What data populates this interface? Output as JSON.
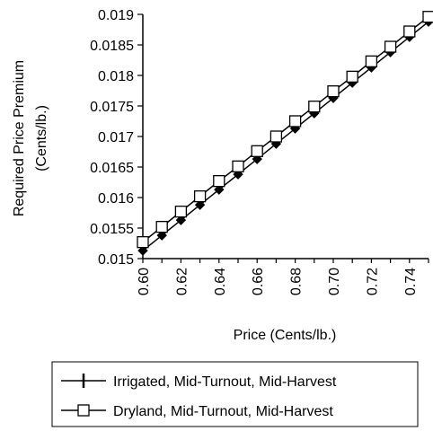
{
  "chart_data": {
    "type": "line",
    "xlabel": "Price (Cents/lb.)",
    "ylabel_line1": "Required Price Premium",
    "ylabel_line2": "(Cents/lb.)",
    "xlim": [
      0.6,
      0.75
    ],
    "ylim": [
      0.015,
      0.019
    ],
    "x_ticks": [
      "0.60",
      "0.62",
      "0.64",
      "0.66",
      "0.68",
      "0.70",
      "0.72",
      "0.74"
    ],
    "y_ticks": [
      "0.015",
      "0.0155",
      "0.016",
      "0.0165",
      "0.017",
      "0.0175",
      "0.018",
      "0.0185",
      "0.019"
    ],
    "grid": false,
    "legend_position": "bottom",
    "x": [
      0.6,
      0.61,
      0.62,
      0.63,
      0.64,
      0.65,
      0.66,
      0.67,
      0.68,
      0.69,
      0.7,
      0.71,
      0.72,
      0.73,
      0.74,
      0.75
    ],
    "series": [
      {
        "name": "Irrigated, Mid-Turnout, Mid-Harvest",
        "marker": "filled-diamond",
        "values": [
          0.01513,
          0.01538,
          0.01563,
          0.01588,
          0.01613,
          0.01638,
          0.01663,
          0.01688,
          0.01713,
          0.01738,
          0.01763,
          0.01788,
          0.01813,
          0.01838,
          0.01863,
          0.01888
        ]
      },
      {
        "name": "Dryland, Mid-Turnout, Mid-Harvest",
        "marker": "open-square",
        "values": [
          0.01527,
          0.01552,
          0.01577,
          0.01602,
          0.01627,
          0.01651,
          0.01676,
          0.017,
          0.01725,
          0.01749,
          0.01774,
          0.01798,
          0.01823,
          0.01847,
          0.01872,
          0.01896
        ]
      }
    ]
  }
}
